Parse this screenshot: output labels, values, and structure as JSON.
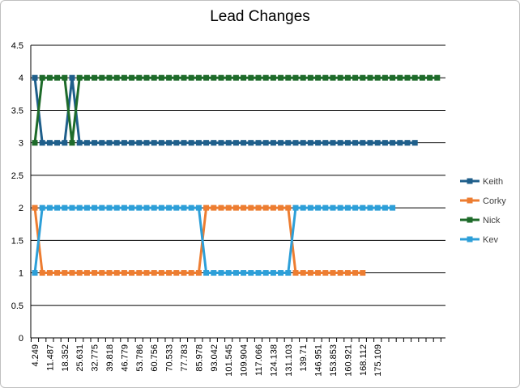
{
  "chart_data": {
    "type": "line",
    "title": "Lead Changes",
    "xlabel": "",
    "ylabel": "",
    "ylim": [
      0,
      4.5
    ],
    "yticks": [
      "0",
      "0.5",
      "1",
      "1.5",
      "2",
      "2.5",
      "3",
      "3.5",
      "4",
      "4.5"
    ],
    "grid": true,
    "legend": "right",
    "x_tick_labels": [
      "4.249",
      "11.487",
      "18.352",
      "25.631",
      "32.775",
      "39.818",
      "46.779",
      "53.786",
      "60.756",
      "70.533",
      "77.783",
      "85.978",
      "93.042",
      "101.545",
      "109.904",
      "117.066",
      "124.138",
      "131.103",
      "139.71",
      "146.951",
      "153.853",
      "160.921",
      "168.112",
      "175.109"
    ],
    "series": [
      {
        "name": "Keith",
        "color": "#1f5f8b",
        "values": [
          4,
          3,
          3,
          3,
          3,
          4,
          3,
          3,
          3,
          3,
          3,
          3,
          3,
          3,
          3,
          3,
          3,
          3,
          3,
          3,
          3,
          3,
          3,
          3,
          3,
          3,
          3,
          3,
          3,
          3,
          3,
          3,
          3,
          3,
          3,
          3,
          3,
          3,
          3,
          3,
          3,
          3,
          3,
          3,
          3,
          3,
          3,
          3,
          3,
          3,
          3,
          3
        ]
      },
      {
        "name": "Corky",
        "color": "#ed7d31",
        "values": [
          2,
          1,
          1,
          1,
          1,
          1,
          1,
          1,
          1,
          1,
          1,
          1,
          1,
          1,
          1,
          1,
          1,
          1,
          1,
          1,
          1,
          1,
          1,
          2,
          2,
          2,
          2,
          2,
          2,
          2,
          2,
          2,
          2,
          2,
          2,
          1,
          1,
          1,
          1,
          1,
          1,
          1,
          1,
          1,
          1
        ]
      },
      {
        "name": "Nick",
        "color": "#1e6b2a",
        "values": [
          3,
          4,
          4,
          4,
          4,
          3,
          4,
          4,
          4,
          4,
          4,
          4,
          4,
          4,
          4,
          4,
          4,
          4,
          4,
          4,
          4,
          4,
          4,
          4,
          4,
          4,
          4,
          4,
          4,
          4,
          4,
          4,
          4,
          4,
          4,
          4,
          4,
          4,
          4,
          4,
          4,
          4,
          4,
          4,
          4,
          4,
          4,
          4,
          4,
          4,
          4,
          4,
          4,
          4,
          4
        ]
      },
      {
        "name": "Kev",
        "color": "#2d9fd8",
        "values": [
          1,
          2,
          2,
          2,
          2,
          2,
          2,
          2,
          2,
          2,
          2,
          2,
          2,
          2,
          2,
          2,
          2,
          2,
          2,
          2,
          2,
          2,
          2,
          1,
          1,
          1,
          1,
          1,
          1,
          1,
          1,
          1,
          1,
          1,
          1,
          2,
          2,
          2,
          2,
          2,
          2,
          2,
          2,
          2,
          2,
          2,
          2,
          2,
          2
        ]
      }
    ]
  }
}
